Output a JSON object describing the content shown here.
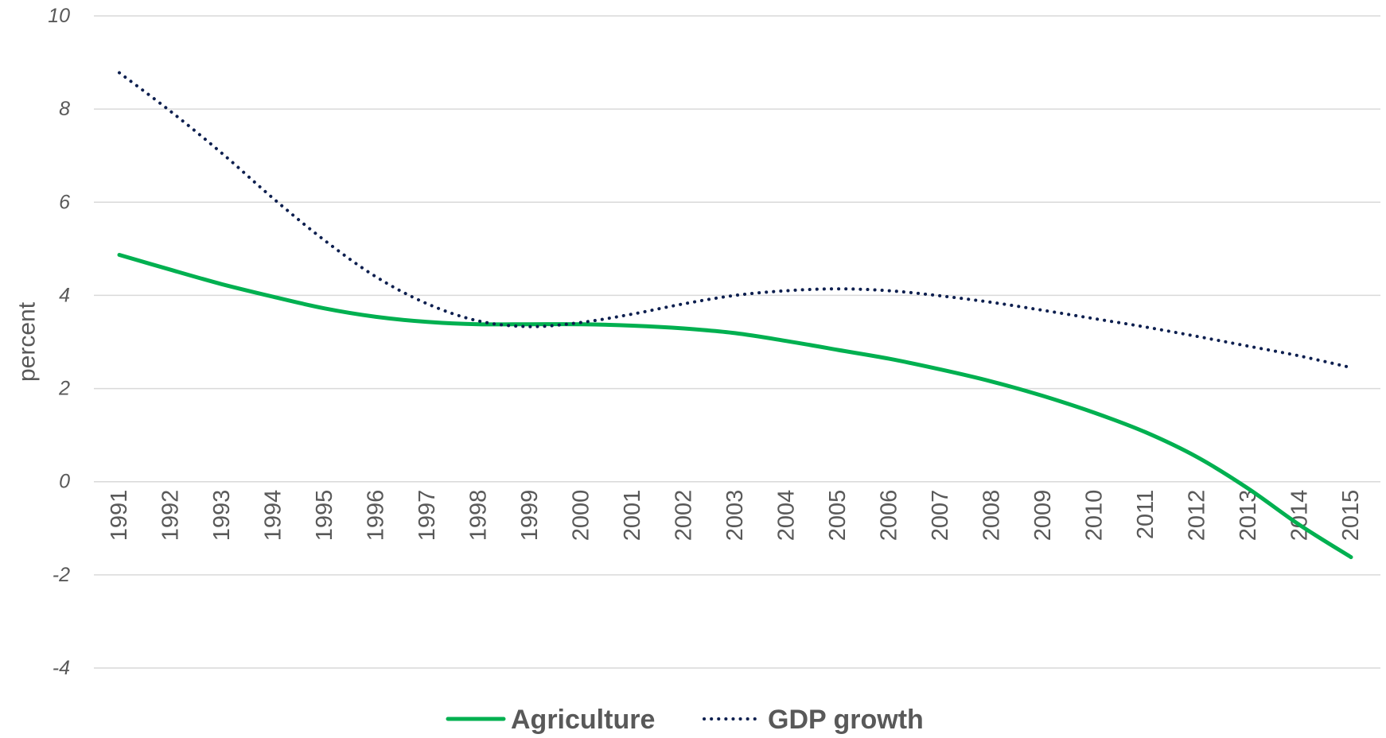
{
  "chart_data": {
    "type": "line",
    "title": "",
    "xlabel": "",
    "ylabel": "percent",
    "ylim": [
      -4,
      10
    ],
    "yticks": [
      -4,
      -2,
      0,
      2,
      4,
      6,
      8,
      10
    ],
    "grid": true,
    "legend_position": "bottom",
    "categories": [
      "1991",
      "1992",
      "1993",
      "1994",
      "1995",
      "1996",
      "1997",
      "1998",
      "1999",
      "2000",
      "2001",
      "2002",
      "2003",
      "2004",
      "2005",
      "2006",
      "2007",
      "2008",
      "2009",
      "2010",
      "2011",
      "2012",
      "2013",
      "2014",
      "2015"
    ],
    "series": [
      {
        "name": "Agriculture",
        "style": "solid",
        "color": "#00b050",
        "values": [
          4.87,
          4.55,
          4.24,
          3.97,
          3.72,
          3.54,
          3.43,
          3.38,
          3.38,
          3.38,
          3.35,
          3.29,
          3.19,
          3.02,
          2.83,
          2.64,
          2.41,
          2.15,
          1.84,
          1.48,
          1.06,
          0.53,
          -0.15,
          -0.93,
          -1.62
        ]
      },
      {
        "name": "GDP growth",
        "style": "dotted",
        "color": "#0d1f4f",
        "values": [
          8.78,
          7.95,
          7.05,
          6.08,
          5.18,
          4.4,
          3.82,
          3.45,
          3.33,
          3.42,
          3.6,
          3.82,
          4.0,
          4.1,
          4.14,
          4.1,
          3.99,
          3.85,
          3.68,
          3.5,
          3.32,
          3.12,
          2.91,
          2.7,
          2.45
        ]
      }
    ]
  }
}
